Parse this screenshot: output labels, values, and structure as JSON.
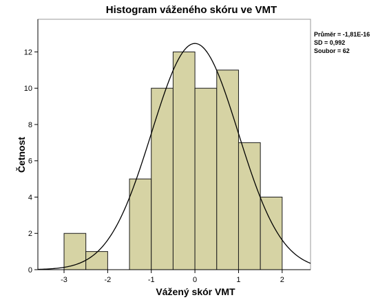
{
  "chart_data": {
    "type": "bar",
    "title": "Histogram váženého skóru ve VMT",
    "xlabel": "Vážený skór VMT",
    "ylabel": "Četnost",
    "x_ticks": [
      "-3",
      "-2",
      "-1",
      "0",
      "1",
      "2"
    ],
    "x_tick_values": [
      -3,
      -2,
      -1,
      0,
      1,
      2
    ],
    "y_ticks": [
      "0",
      "2",
      "4",
      "6",
      "8",
      "10",
      "12"
    ],
    "y_tick_values": [
      0,
      2,
      4,
      6,
      8,
      10,
      12
    ],
    "xlim": [
      -3.6,
      2.65
    ],
    "ylim": [
      0,
      13.8
    ],
    "bin_width": 0.5,
    "bins": [
      {
        "start": -3.0,
        "end": -2.5,
        "count": 2
      },
      {
        "start": -2.5,
        "end": -2.0,
        "count": 1
      },
      {
        "start": -2.0,
        "end": -1.5,
        "count": 0
      },
      {
        "start": -1.5,
        "end": -1.0,
        "count": 5
      },
      {
        "start": -1.0,
        "end": -0.5,
        "count": 10
      },
      {
        "start": -0.5,
        "end": 0.0,
        "count": 12
      },
      {
        "start": 0.0,
        "end": 0.5,
        "count": 10
      },
      {
        "start": 0.5,
        "end": 1.0,
        "count": 11
      },
      {
        "start": 1.0,
        "end": 1.5,
        "count": 7
      },
      {
        "start": 1.5,
        "end": 2.0,
        "count": 4
      }
    ],
    "normal_curve": {
      "mean": -1.81e-16,
      "sd": 0.992,
      "n": 62
    },
    "stats_labels": [
      "Průměr = -1,81E-16",
      "SD = 0,992",
      "Soubor = 62"
    ],
    "grid": false,
    "colors": {
      "bar_fill": "#d6d3a4",
      "bar_stroke": "#1a1a1a",
      "curve": "#000000",
      "plot_bg": "#ffffff",
      "frame": "#9a9a9a"
    }
  }
}
